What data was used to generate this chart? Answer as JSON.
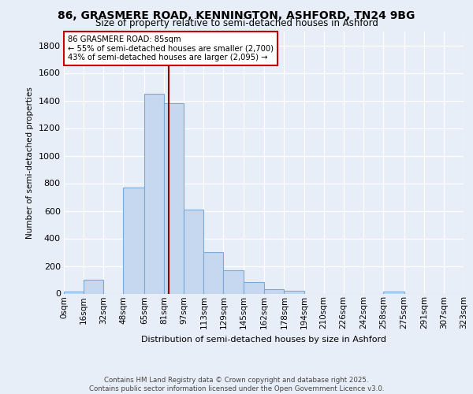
{
  "title": "86, GRASMERE ROAD, KENNINGTON, ASHFORD, TN24 9BG",
  "subtitle": "Size of property relative to semi-detached houses in Ashford",
  "xlabel": "Distribution of semi-detached houses by size in Ashford",
  "ylabel": "Number of semi-detached properties",
  "bin_labels": [
    "0sqm",
    "16sqm",
    "32sqm",
    "48sqm",
    "65sqm",
    "81sqm",
    "97sqm",
    "113sqm",
    "129sqm",
    "145sqm",
    "162sqm",
    "178sqm",
    "194sqm",
    "210sqm",
    "226sqm",
    "242sqm",
    "258sqm",
    "275sqm",
    "291sqm",
    "307sqm",
    "323sqm"
  ],
  "bin_edges": [
    0,
    16,
    32,
    48,
    65,
    81,
    97,
    113,
    129,
    145,
    162,
    178,
    194,
    210,
    226,
    242,
    258,
    275,
    291,
    307,
    323
  ],
  "bar_heights": [
    15,
    100,
    0,
    770,
    1450,
    1380,
    610,
    300,
    170,
    85,
    30,
    20,
    0,
    0,
    0,
    0,
    15,
    0,
    0,
    0,
    0
  ],
  "bar_color": "#c5d8f0",
  "bar_edge_color": "#7aaad4",
  "property_size": 85,
  "property_line_color": "#990000",
  "annotation_text": "86 GRASMERE ROAD: 85sqm\n← 55% of semi-detached houses are smaller (2,700)\n43% of semi-detached houses are larger (2,095) →",
  "annotation_box_color": "#ffffff",
  "annotation_box_edge": "#cc0000",
  "footer_text": "Contains HM Land Registry data © Crown copyright and database right 2025.\nContains public sector information licensed under the Open Government Licence v3.0.",
  "ylim": [
    0,
    1900
  ],
  "background_color": "#e8eef8",
  "plot_background": "#e8eef8"
}
